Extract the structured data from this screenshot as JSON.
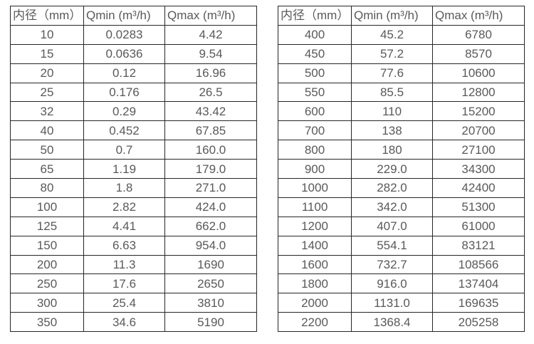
{
  "colors": {
    "background": "#ffffff",
    "table_border": "#262626",
    "table_text": "#595959"
  },
  "tables": [
    {
      "name": "small-diameters",
      "headers": [
        "内径（mm）",
        "Qmin (m³/h)",
        "Qmax (m³/h)"
      ],
      "rows": [
        [
          "10",
          "0.0283",
          "4.42"
        ],
        [
          "15",
          "0.0636",
          "9.54"
        ],
        [
          "20",
          "0.12",
          "16.96"
        ],
        [
          "25",
          "0.176",
          "26.5"
        ],
        [
          "32",
          "0.29",
          "43.42"
        ],
        [
          "40",
          "0.452",
          "67.85"
        ],
        [
          "50",
          "0.7",
          "160.0"
        ],
        [
          "65",
          "1.19",
          "179.0"
        ],
        [
          "80",
          "1.8",
          "271.0"
        ],
        [
          "100",
          "2.82",
          "424.0"
        ],
        [
          "125",
          "4.41",
          "662.0"
        ],
        [
          "150",
          "6.63",
          "954.0"
        ],
        [
          "200",
          "11.3",
          "1690"
        ],
        [
          "250",
          "17.6",
          "2650"
        ],
        [
          "300",
          "25.4",
          "3810"
        ],
        [
          "350",
          "34.6",
          "5190"
        ]
      ]
    },
    {
      "name": "large-diameters",
      "headers": [
        "内径（mm）",
        "Qmin (m³/h)",
        "Qmax (m³/h)"
      ],
      "rows": [
        [
          "400",
          "45.2",
          "6780"
        ],
        [
          "450",
          "57.2",
          "8570"
        ],
        [
          "500",
          "77.6",
          "10600"
        ],
        [
          "550",
          "85.5",
          "12800"
        ],
        [
          "600",
          "110",
          "15200"
        ],
        [
          "700",
          "138",
          "20700"
        ],
        [
          "800",
          "180",
          "27100"
        ],
        [
          "900",
          "229.0",
          "34300"
        ],
        [
          "1000",
          "282.0",
          "42400"
        ],
        [
          "1100",
          "342.0",
          "51300"
        ],
        [
          "1200",
          "407.0",
          "61000"
        ],
        [
          "1400",
          "554.1",
          "83121"
        ],
        [
          "1600",
          "732.7",
          "108566"
        ],
        [
          "1800",
          "916.0",
          "137404"
        ],
        [
          "2000",
          "1131.0",
          "169635"
        ],
        [
          "2200",
          "1368.4",
          "205258"
        ]
      ]
    }
  ]
}
